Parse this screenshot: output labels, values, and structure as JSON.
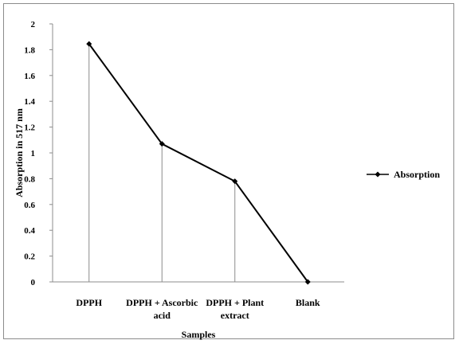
{
  "chart_data": {
    "type": "line",
    "categories": [
      "DPPH",
      "DPPH + Ascorbic acid",
      "DPPH + Plant extract",
      "Blank"
    ],
    "category_label_lines": [
      [
        "DPPH"
      ],
      [
        "DPPH + Ascorbic",
        "acid"
      ],
      [
        "DPPH + Plant",
        "extract"
      ],
      [
        "Blank"
      ]
    ],
    "series": [
      {
        "name": "Absorption",
        "values": [
          1.845,
          1.07,
          0.78,
          0.0
        ],
        "color": "#000000",
        "marker": "diamond"
      }
    ],
    "drop_lines": true,
    "drop_line_color": "#8c8c8c",
    "xlabel": "Samples",
    "ylabel": "Absorption in 517 nm",
    "ylim": [
      0,
      2
    ],
    "yticks": [
      "0",
      "0.2",
      "0.4",
      "0.6",
      "0.8",
      "1",
      "1.2",
      "1.4",
      "1.6",
      "1.8",
      "2"
    ],
    "grid": false,
    "legend": {
      "position": "right",
      "entries": [
        "Absorption"
      ]
    }
  }
}
